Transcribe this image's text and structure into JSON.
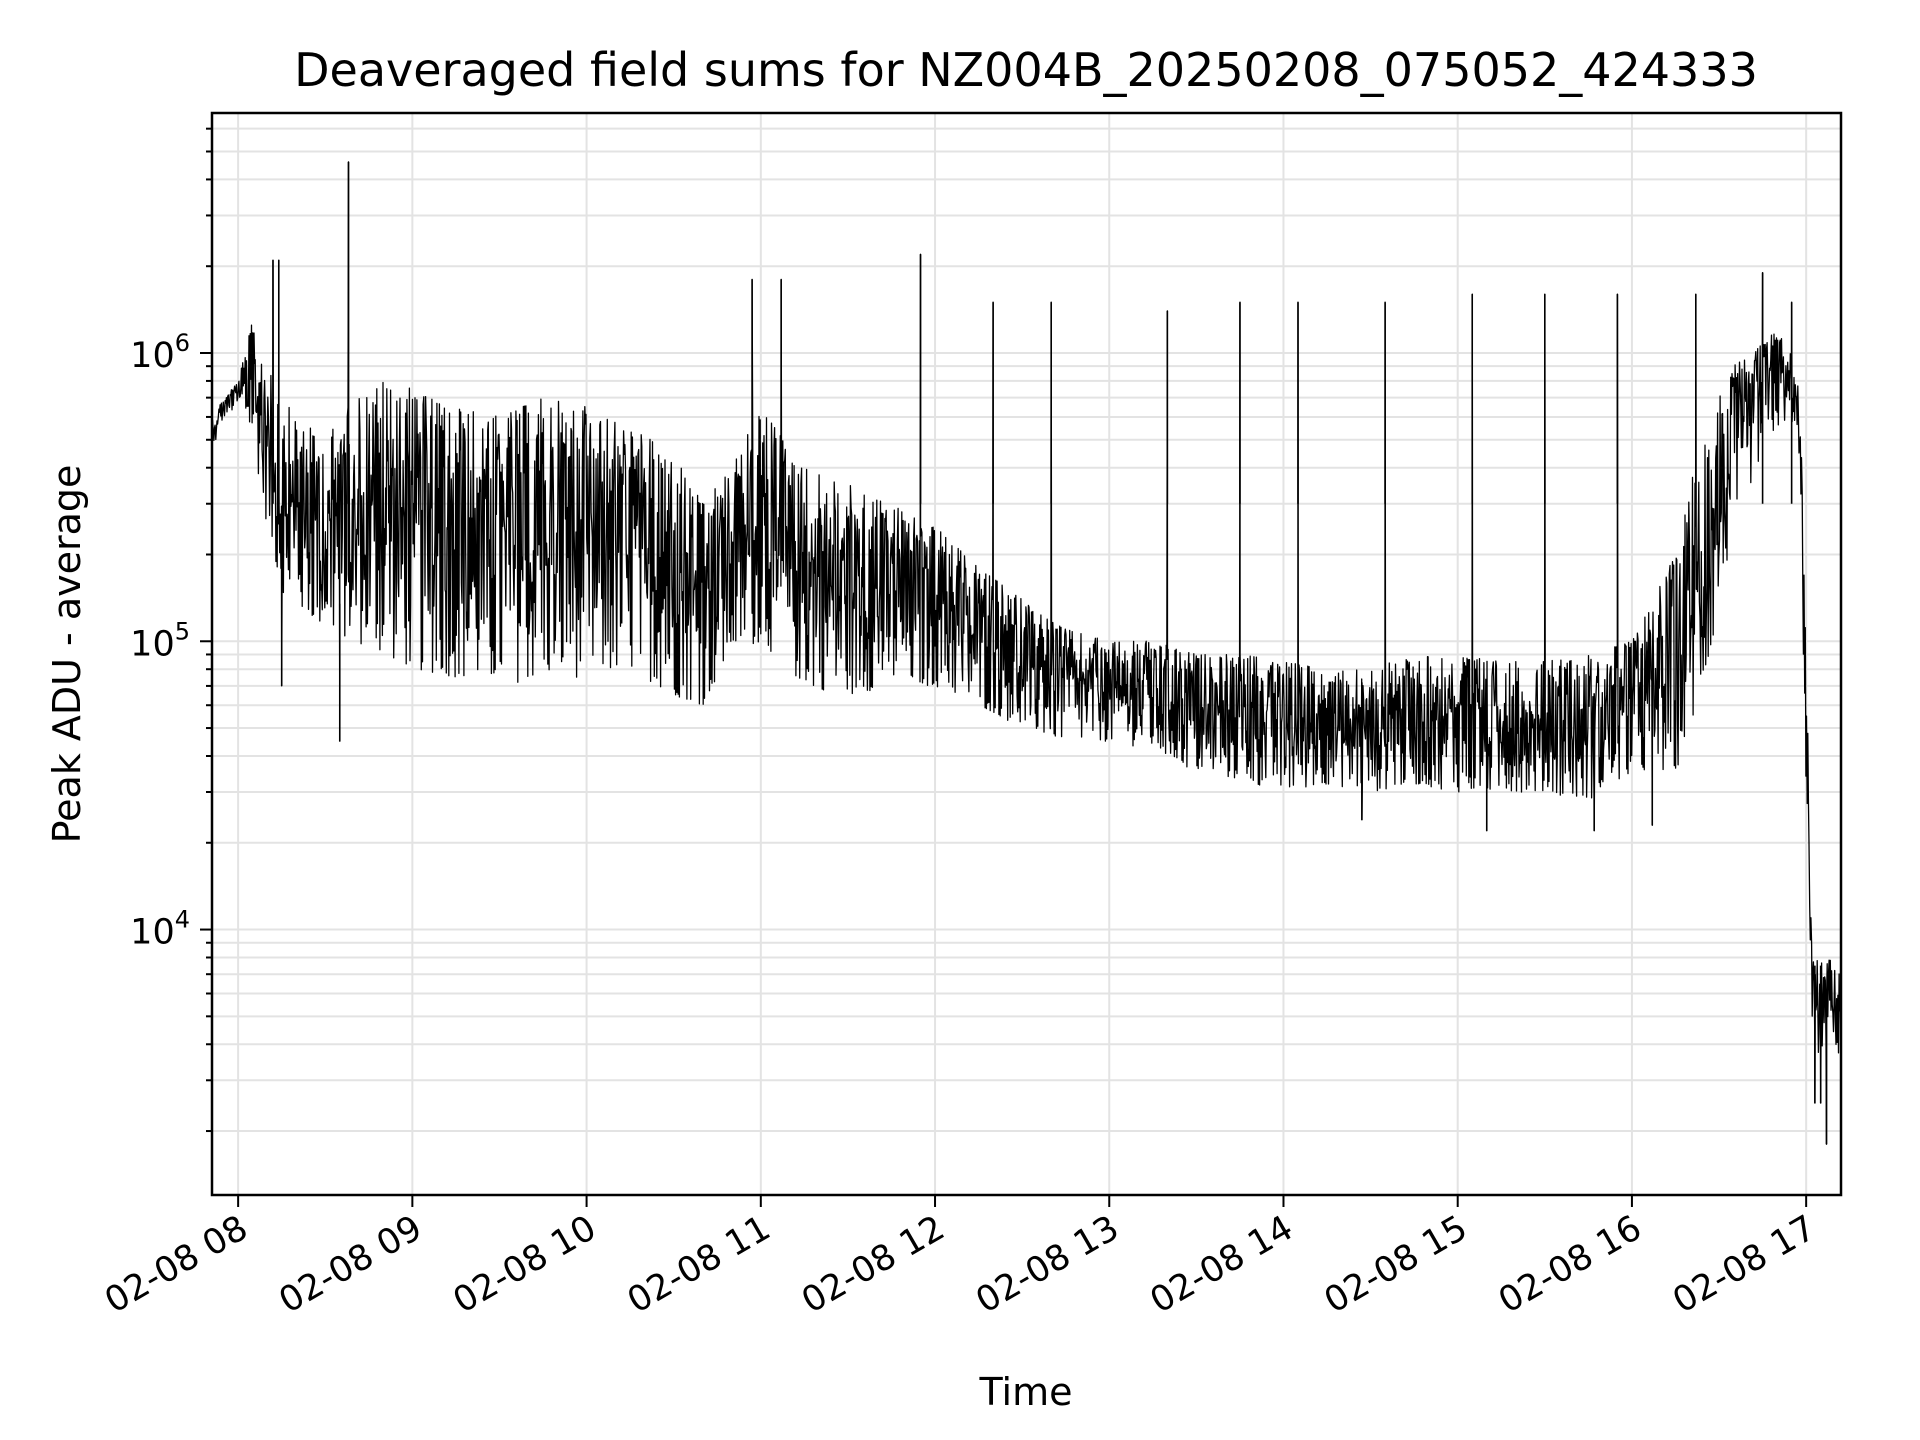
{
  "chart_data": {
    "type": "line",
    "title": "Deaveraged field sums for NZ004B_20250208_075052_424333",
    "xlabel": "Time",
    "ylabel": "Peak ADU - average",
    "yscale": "log",
    "grid": true,
    "x_tick_labels": [
      "02-08 08",
      "02-08 09",
      "02-08 10",
      "02-08 11",
      "02-08 12",
      "02-08 13",
      "02-08 14",
      "02-08 15",
      "02-08 16",
      "02-08 17"
    ],
    "x_tick_times": [
      "2025-02-08 08:00",
      "2025-02-08 09:00",
      "2025-02-08 10:00",
      "2025-02-08 11:00",
      "2025-02-08 12:00",
      "2025-02-08 13:00",
      "2025-02-08 14:00",
      "2025-02-08 15:00",
      "2025-02-08 16:00",
      "2025-02-08 17:00"
    ],
    "xlim": [
      "2025-02-08 07:51",
      "2025-02-08 17:12"
    ],
    "y_tick_labels": [
      {
        "base": "10",
        "exp": "4"
      },
      {
        "base": "10",
        "exp": "5"
      },
      {
        "base": "10",
        "exp": "6"
      }
    ],
    "y_tick_values": [
      10000,
      100000,
      1000000
    ],
    "ylim": [
      1200,
      6800000
    ],
    "series": [
      {
        "color": "#000000",
        "envelope": {
          "x": [
            "2025-02-08 07:51",
            "2025-02-08 07:55",
            "2025-02-08 08:00",
            "2025-02-08 08:05",
            "2025-02-08 08:10",
            "2025-02-08 08:15",
            "2025-02-08 08:20",
            "2025-02-08 08:30",
            "2025-02-08 08:40",
            "2025-02-08 08:50",
            "2025-02-08 09:00",
            "2025-02-08 09:15",
            "2025-02-08 09:30",
            "2025-02-08 09:45",
            "2025-02-08 10:00",
            "2025-02-08 10:15",
            "2025-02-08 10:30",
            "2025-02-08 10:40",
            "2025-02-08 10:50",
            "2025-02-08 11:00",
            "2025-02-08 11:15",
            "2025-02-08 11:30",
            "2025-02-08 11:45",
            "2025-02-08 12:00",
            "2025-02-08 12:15",
            "2025-02-08 12:30",
            "2025-02-08 12:45",
            "2025-02-08 13:00",
            "2025-02-08 13:15",
            "2025-02-08 13:30",
            "2025-02-08 13:45",
            "2025-02-08 14:00",
            "2025-02-08 14:15",
            "2025-02-08 14:30",
            "2025-02-08 14:45",
            "2025-02-08 15:00",
            "2025-02-08 15:15",
            "2025-02-08 15:30",
            "2025-02-08 15:45",
            "2025-02-08 16:00",
            "2025-02-08 16:15",
            "2025-02-08 16:25",
            "2025-02-08 16:35",
            "2025-02-08 16:45",
            "2025-02-08 16:50",
            "2025-02-08 16:55",
            "2025-02-08 16:58",
            "2025-02-08 17:00",
            "2025-02-08 17:02",
            "2025-02-08 17:05",
            "2025-02-08 17:08",
            "2025-02-08 17:12"
          ],
          "low": [
            450000,
            600000,
            650000,
            500000,
            250000,
            150000,
            130000,
            110000,
            100000,
            90000,
            80000,
            75000,
            70000,
            75000,
            75000,
            80000,
            65000,
            60000,
            90000,
            100000,
            70000,
            65000,
            70000,
            70000,
            60000,
            50000,
            45000,
            45000,
            42000,
            35000,
            33000,
            30000,
            32000,
            30000,
            32000,
            30000,
            30000,
            30000,
            28000,
            35000,
            35000,
            70000,
            250000,
            450000,
            550000,
            600000,
            300000,
            30000,
            4500,
            3500,
            4500,
            3500
          ],
          "high": [
            600000,
            700000,
            800000,
            1300000,
            900000,
            700000,
            600000,
            500000,
            700000,
            800000,
            750000,
            650000,
            600000,
            700000,
            650000,
            550000,
            450000,
            300000,
            400000,
            650000,
            400000,
            350000,
            300000,
            250000,
            180000,
            140000,
            110000,
            100000,
            100000,
            90000,
            90000,
            85000,
            80000,
            80000,
            90000,
            90000,
            85000,
            85000,
            90000,
            100000,
            200000,
            600000,
            900000,
            1100000,
            1200000,
            1000000,
            700000,
            100000,
            8000,
            8000,
            8000,
            7000
          ]
        },
        "spikes": [
          {
            "x": "2025-02-08 08:12",
            "y": 2100000
          },
          {
            "x": "2025-02-08 08:14",
            "y": 2100000
          },
          {
            "x": "2025-02-08 08:38",
            "y": 4600000
          },
          {
            "x": "2025-02-08 10:57",
            "y": 1800000
          },
          {
            "x": "2025-02-08 11:07",
            "y": 1800000
          },
          {
            "x": "2025-02-08 11:55",
            "y": 2200000
          },
          {
            "x": "2025-02-08 12:20",
            "y": 1500000
          },
          {
            "x": "2025-02-08 12:40",
            "y": 1500000
          },
          {
            "x": "2025-02-08 13:20",
            "y": 1400000
          },
          {
            "x": "2025-02-08 13:45",
            "y": 1500000
          },
          {
            "x": "2025-02-08 14:05",
            "y": 1500000
          },
          {
            "x": "2025-02-08 14:35",
            "y": 1500000
          },
          {
            "x": "2025-02-08 15:05",
            "y": 1600000
          },
          {
            "x": "2025-02-08 15:30",
            "y": 1600000
          },
          {
            "x": "2025-02-08 15:55",
            "y": 1600000
          },
          {
            "x": "2025-02-08 16:22",
            "y": 1600000
          },
          {
            "x": "2025-02-08 16:45",
            "y": 1900000
          },
          {
            "x": "2025-02-08 16:55",
            "y": 1500000
          }
        ],
        "dips": [
          {
            "x": "2025-02-08 08:15",
            "y": 70000
          },
          {
            "x": "2025-02-08 08:35",
            "y": 45000
          },
          {
            "x": "2025-02-08 14:27",
            "y": 24000
          },
          {
            "x": "2025-02-08 15:10",
            "y": 22000
          },
          {
            "x": "2025-02-08 15:47",
            "y": 22000
          },
          {
            "x": "2025-02-08 16:07",
            "y": 23000
          },
          {
            "x": "2025-02-08 17:03",
            "y": 2500
          },
          {
            "x": "2025-02-08 17:05",
            "y": 2500
          },
          {
            "x": "2025-02-08 17:07",
            "y": 1800
          }
        ]
      }
    ]
  }
}
